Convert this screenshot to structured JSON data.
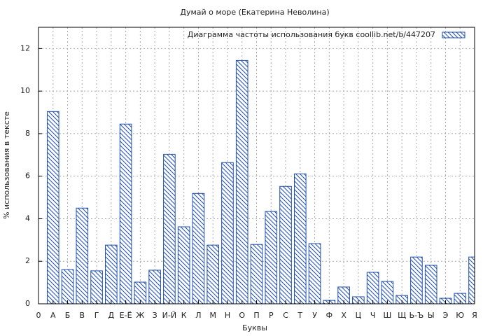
{
  "chart_data": {
    "type": "bar",
    "title": "Думай о море (Екатерина Неволина)",
    "x_label": "Буквы",
    "y_label": "% использования в тексте",
    "categories": [
      "0",
      "А",
      "Б",
      "В",
      "Г",
      "Д",
      "Е-Ё",
      "Ж",
      "З",
      "И-Й",
      "К",
      "Л",
      "М",
      "Н",
      "О",
      "П",
      "Р",
      "С",
      "Т",
      "У",
      "Ф",
      "Х",
      "Ц",
      "Ч",
      "Ш",
      "Щ",
      "Ь-Ъ",
      "Ы",
      "Э",
      "Ю",
      "Я"
    ],
    "series": [
      {
        "name": "Диаграмма частоты использования букв  coollib.net/b/447207",
        "color": "#1f4fa8",
        "values": [
          null,
          9.04,
          1.61,
          4.5,
          1.55,
          2.76,
          8.45,
          1.02,
          1.58,
          7.03,
          3.62,
          5.19,
          2.76,
          6.64,
          11.44,
          2.79,
          4.34,
          5.52,
          6.11,
          2.83,
          0.16,
          0.79,
          0.33,
          1.48,
          1.05,
          0.39,
          2.2,
          1.81,
          0.26,
          0.49,
          2.2
        ]
      }
    ],
    "ylim": [
      0,
      13
    ],
    "yticks": [
      0,
      2,
      4,
      6,
      8,
      10,
      12
    ],
    "grid": true,
    "legend": "top-right"
  }
}
